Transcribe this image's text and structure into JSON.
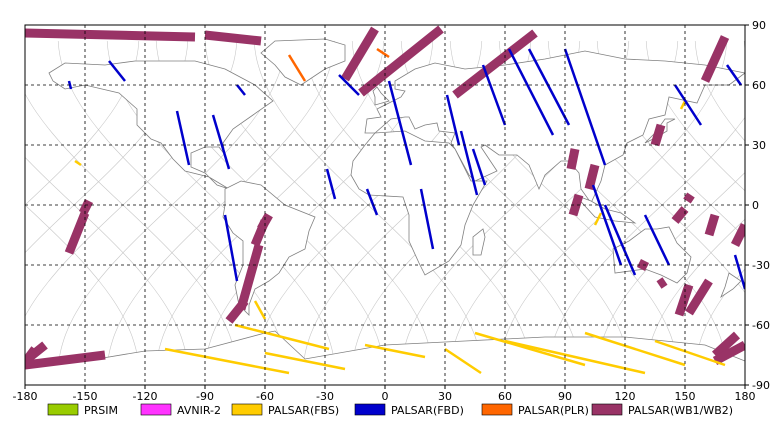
{
  "map": {
    "lon_range": [
      -180,
      180
    ],
    "lat_range": [
      -90,
      90
    ],
    "lon_ticks": [
      "-180",
      "-150",
      "-120",
      "-90",
      "-60",
      "-30",
      "0",
      "30",
      "60",
      "90",
      "120",
      "150",
      "180"
    ],
    "lat_ticks": [
      "90",
      "60",
      "30",
      "0",
      "-30",
      "-60",
      "-90"
    ],
    "grid": true,
    "orbit_color": "#c8c8c8",
    "coast_color": "#808080"
  },
  "legend": [
    {
      "label": "PRSIM",
      "color": "#99cc00"
    },
    {
      "label": "AVNIR-2",
      "color": "#ff33ff"
    },
    {
      "label": "PALSAR(FBS)",
      "color": "#ffcc00"
    },
    {
      "label": "PALSAR(FBD)",
      "color": "#0000cc"
    },
    {
      "label": "PALSAR(PLR)",
      "color": "#ff6600"
    },
    {
      "label": "PALSAR(WB1/WB2)",
      "color": "#993366"
    }
  ],
  "swaths": {
    "wb": [
      [
        [
          -180,
          86
        ],
        [
          -95,
          84
        ]
      ],
      [
        [
          -90,
          85
        ],
        [
          -62,
          82
        ]
      ],
      [
        [
          -5,
          88
        ],
        [
          -20,
          63
        ]
      ],
      [
        [
          28,
          88
        ],
        [
          -12,
          56
        ]
      ],
      [
        [
          75,
          86
        ],
        [
          35,
          55
        ]
      ],
      [
        [
          170,
          84
        ],
        [
          160,
          62
        ]
      ],
      [
        [
          -150,
          -4
        ],
        [
          -158,
          -24
        ]
      ],
      [
        [
          -148,
          2
        ],
        [
          -151,
          -4
        ]
      ],
      [
        [
          -60,
          -8
        ],
        [
          -65,
          -20
        ]
      ],
      [
        [
          -58,
          -5
        ],
        [
          -62,
          -12
        ]
      ],
      [
        [
          -63,
          -20
        ],
        [
          -72,
          -52
        ]
      ],
      [
        [
          -70,
          -48
        ],
        [
          -78,
          -58
        ]
      ],
      [
        [
          -170,
          -70
        ],
        [
          -180,
          -78
        ]
      ],
      [
        [
          -140,
          -75
        ],
        [
          -180,
          -80
        ]
      ],
      [
        [
          -175,
          -72
        ],
        [
          -178,
          -76
        ]
      ],
      [
        [
          95,
          28
        ],
        [
          93,
          18
        ]
      ],
      [
        [
          97,
          5
        ],
        [
          94,
          -5
        ]
      ],
      [
        [
          105,
          20
        ],
        [
          102,
          8
        ]
      ],
      [
        [
          138,
          40
        ],
        [
          135,
          30
        ]
      ],
      [
        [
          150,
          -2
        ],
        [
          145,
          -8
        ]
      ],
      [
        [
          165,
          -5
        ],
        [
          162,
          -15
        ]
      ],
      [
        [
          152,
          -40
        ],
        [
          147,
          -55
        ]
      ],
      [
        [
          162,
          -38
        ],
        [
          152,
          -54
        ]
      ],
      [
        [
          180,
          -10
        ],
        [
          175,
          -20
        ]
      ],
      [
        [
          176,
          -65
        ],
        [
          165,
          -75
        ]
      ],
      [
        [
          180,
          -70
        ],
        [
          165,
          -78
        ]
      ],
      [
        [
          130,
          -28
        ],
        [
          128,
          -32
        ]
      ],
      [
        [
          140,
          -38
        ],
        [
          137,
          -40
        ]
      ],
      [
        [
          153,
          5
        ],
        [
          151,
          2
        ]
      ]
    ],
    "fbd": [
      [
        [
          -138,
          72
        ],
        [
          -130,
          62
        ]
      ],
      [
        [
          -158,
          62
        ],
        [
          -157,
          58
        ]
      ],
      [
        [
          -104,
          47
        ],
        [
          -98,
          20
        ]
      ],
      [
        [
          -86,
          45
        ],
        [
          -78,
          18
        ]
      ],
      [
        [
          -74,
          60
        ],
        [
          -70,
          55
        ]
      ],
      [
        [
          -80,
          -5
        ],
        [
          -74,
          -38
        ]
      ],
      [
        [
          -23,
          65
        ],
        [
          -13,
          55
        ]
      ],
      [
        [
          -9,
          8
        ],
        [
          -4,
          -5
        ]
      ],
      [
        [
          -29,
          18
        ],
        [
          -25,
          3
        ]
      ],
      [
        [
          2,
          62
        ],
        [
          13,
          20
        ]
      ],
      [
        [
          18,
          8
        ],
        [
          24,
          -22
        ]
      ],
      [
        [
          31,
          55
        ],
        [
          37,
          30
        ]
      ],
      [
        [
          38,
          37
        ],
        [
          46,
          5
        ]
      ],
      [
        [
          44,
          28
        ],
        [
          50,
          10
        ]
      ],
      [
        [
          49,
          70
        ],
        [
          60,
          40
        ]
      ],
      [
        [
          62,
          78
        ],
        [
          84,
          35
        ]
      ],
      [
        [
          72,
          78
        ],
        [
          92,
          40
        ]
      ],
      [
        [
          90,
          78
        ],
        [
          110,
          20
        ]
      ],
      [
        [
          104,
          10
        ],
        [
          118,
          -30
        ]
      ],
      [
        [
          110,
          0
        ],
        [
          125,
          -35
        ]
      ],
      [
        [
          130,
          -5
        ],
        [
          142,
          -30
        ]
      ],
      [
        [
          145,
          60
        ],
        [
          158,
          40
        ]
      ],
      [
        [
          171,
          70
        ],
        [
          178,
          60
        ]
      ],
      [
        [
          175,
          -25
        ],
        [
          180,
          -42
        ]
      ]
    ],
    "fbs": [
      [
        [
          -155,
          22
        ],
        [
          -152,
          20
        ]
      ],
      [
        [
          -65,
          -48
        ],
        [
          -60,
          -57
        ]
      ],
      [
        [
          -75,
          -60
        ],
        [
          -28,
          -72
        ]
      ],
      [
        [
          -110,
          -72
        ],
        [
          -48,
          -84
        ]
      ],
      [
        [
          -60,
          -74
        ],
        [
          -20,
          -82
        ]
      ],
      [
        [
          -10,
          -70
        ],
        [
          20,
          -76
        ]
      ],
      [
        [
          30,
          -72
        ],
        [
          48,
          -84
        ]
      ],
      [
        [
          45,
          -64
        ],
        [
          100,
          -80
        ]
      ],
      [
        [
          60,
          -68
        ],
        [
          130,
          -84
        ]
      ],
      [
        [
          100,
          -64
        ],
        [
          150,
          -80
        ]
      ],
      [
        [
          135,
          -68
        ],
        [
          170,
          -80
        ]
      ],
      [
        [
          108,
          -4
        ],
        [
          105,
          -10
        ]
      ],
      [
        [
          150,
          52
        ],
        [
          148,
          48
        ]
      ]
    ],
    "plr": [
      [
        [
          -48,
          75
        ],
        [
          -40,
          62
        ]
      ],
      [
        [
          -4,
          78
        ],
        [
          2,
          74
        ]
      ]
    ]
  }
}
